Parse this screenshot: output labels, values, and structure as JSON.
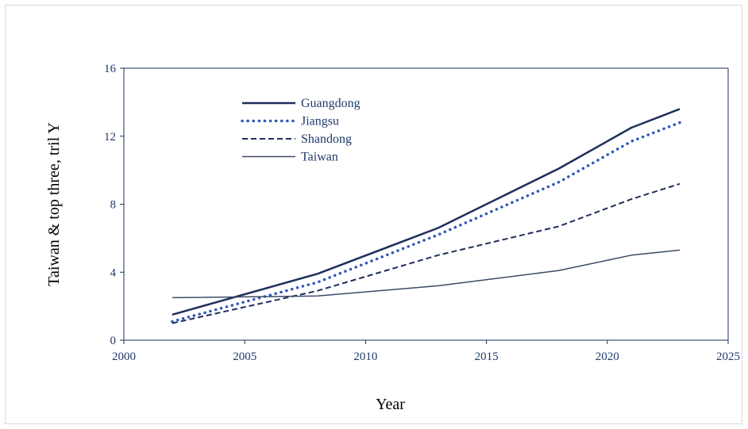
{
  "chart_data": {
    "type": "line",
    "title": "",
    "xlabel": "Year",
    "ylabel": "Taiwan & top three, tril Y",
    "xlim": [
      2000,
      2025
    ],
    "ylim": [
      0,
      16
    ],
    "xticks": [
      2000,
      2005,
      2010,
      2015,
      2020,
      2025
    ],
    "yticks": [
      0,
      4,
      8,
      12,
      16
    ],
    "grid": false,
    "legend_position": "top-left",
    "series": [
      {
        "name": "Guangdong",
        "style": "solid-thick",
        "color": "#1f2f5c",
        "x": [
          2002,
          2008,
          2013,
          2018,
          2021,
          2023
        ],
        "y": [
          1.5,
          3.9,
          6.6,
          10.1,
          12.5,
          13.6
        ]
      },
      {
        "name": "Jiangsu",
        "style": "dotted",
        "color": "#2e55b8",
        "x": [
          2002,
          2008,
          2013,
          2018,
          2021,
          2023
        ],
        "y": [
          1.1,
          3.4,
          6.2,
          9.3,
          11.7,
          12.8
        ]
      },
      {
        "name": "Shandong",
        "style": "dashed",
        "color": "#1f2f5c",
        "x": [
          2002,
          2008,
          2013,
          2018,
          2021,
          2023
        ],
        "y": [
          1.0,
          2.9,
          5.0,
          6.7,
          8.3,
          9.2
        ]
      },
      {
        "name": "Taiwan",
        "style": "solid-thin",
        "color": "#3d4a66",
        "x": [
          2002,
          2008,
          2013,
          2018,
          2021,
          2023
        ],
        "y": [
          2.5,
          2.6,
          3.2,
          4.1,
          5.0,
          5.3
        ]
      }
    ]
  }
}
